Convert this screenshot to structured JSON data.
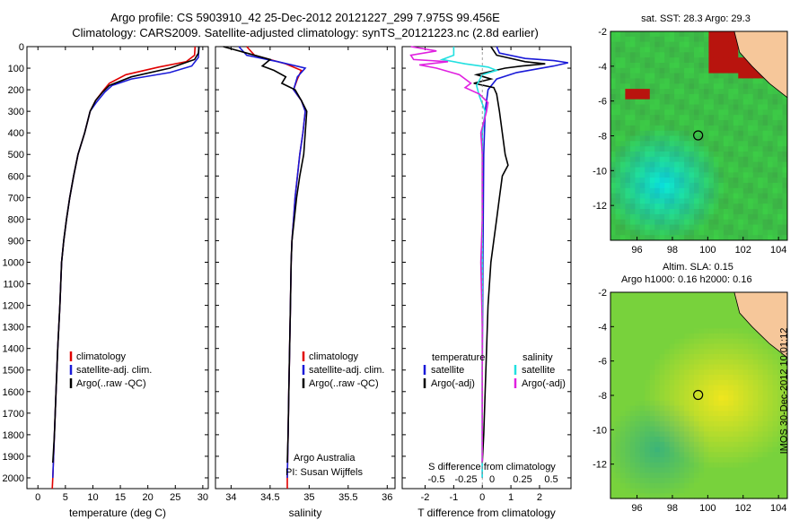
{
  "header": {
    "line1": "Argo profile: CS 5903910_42 25-Dec-2012 20121227_299 7.975S 99.456E",
    "line2": "Climatology: CARS2009. Satellite-adjusted climatology: synTS_20121223.nc (2.8d earlier)"
  },
  "colors": {
    "red": "#e00000",
    "blue": "#1a1ad8",
    "black": "#000000",
    "cyan": "#22e0e0",
    "magenta": "#e020e0",
    "land": "#f6c79a",
    "sea": "#46c246"
  },
  "chart_data": [
    {
      "type": "line",
      "name": "temperature",
      "xlabel": "temperature (deg C)",
      "xlim": [
        -2,
        31
      ],
      "ylim": [
        0,
        2050
      ],
      "xticks": [
        0,
        5,
        10,
        15,
        20,
        25,
        30
      ],
      "yticks": [
        0,
        100,
        200,
        300,
        400,
        500,
        600,
        700,
        800,
        900,
        1000,
        1100,
        1200,
        1300,
        1400,
        1500,
        1600,
        1700,
        1800,
        1900,
        2000
      ],
      "legend": [
        "climatology",
        "satellite-adj. clim.",
        "Argo(..raw -QC)"
      ],
      "series": [
        {
          "name": "climatology",
          "color": "red",
          "points": [
            [
              28.6,
              0
            ],
            [
              28.5,
              40
            ],
            [
              27,
              70
            ],
            [
              22,
              95
            ],
            [
              16,
              130
            ],
            [
              13,
              170
            ],
            [
              12,
              200
            ],
            [
              10.5,
              250
            ],
            [
              9.5,
              300
            ],
            [
              8.5,
              400
            ],
            [
              7.3,
              500
            ],
            [
              6.5,
              600
            ],
            [
              5.8,
              700
            ],
            [
              5.2,
              800
            ],
            [
              4.7,
              900
            ],
            [
              4.3,
              1000
            ],
            [
              4,
              1200
            ],
            [
              3.6,
              1400
            ],
            [
              3.3,
              1600
            ],
            [
              3,
              1800
            ],
            [
              2.7,
              2000
            ],
            [
              2.6,
              2050
            ]
          ]
        },
        {
          "name": "satellite-adj. clim.",
          "color": "blue",
          "points": [
            [
              29.3,
              0
            ],
            [
              29.2,
              50
            ],
            [
              28,
              90
            ],
            [
              24,
              120
            ],
            [
              17,
              150
            ],
            [
              13.5,
              180
            ],
            [
              12.2,
              210
            ],
            [
              10.6,
              260
            ],
            [
              9.5,
              300
            ],
            [
              8.5,
              400
            ],
            [
              7.3,
              500
            ],
            [
              6.5,
              600
            ],
            [
              5.8,
              700
            ],
            [
              5.2,
              800
            ],
            [
              4.7,
              900
            ],
            [
              4.3,
              1000
            ],
            [
              4,
              1200
            ],
            [
              3.6,
              1400
            ],
            [
              3.3,
              1600
            ],
            [
              3,
              1800
            ],
            [
              2.7,
              2000
            ]
          ]
        },
        {
          "name": "Argo(..raw -QC)",
          "color": "black",
          "points": [
            [
              29.3,
              0
            ],
            [
              29.2,
              30
            ],
            [
              28.5,
              60
            ],
            [
              24,
              100
            ],
            [
              17,
              140
            ],
            [
              13,
              180
            ],
            [
              11.8,
              210
            ],
            [
              10.5,
              250
            ],
            [
              9.5,
              300
            ],
            [
              8.5,
              400
            ],
            [
              7.3,
              500
            ],
            [
              6.5,
              600
            ],
            [
              5.8,
              700
            ],
            [
              5.2,
              800
            ],
            [
              4.7,
              900
            ],
            [
              4.3,
              1000
            ],
            [
              4,
              1200
            ],
            [
              3.6,
              1400
            ],
            [
              3.3,
              1600
            ],
            [
              3,
              1800
            ],
            [
              2.7,
              1930
            ]
          ]
        }
      ]
    },
    {
      "type": "line",
      "name": "salinity",
      "xlabel": "salinity",
      "xlim": [
        33.8,
        36.1
      ],
      "ylim": [
        0,
        2050
      ],
      "xticks": [
        34,
        34.5,
        35,
        35.5,
        36
      ],
      "legend": [
        "climatology",
        "satellite-adj. clim.",
        "Argo(..raw -QC)"
      ],
      "annotation": [
        "Argo Australia",
        "PI: Susan Wijffels"
      ],
      "series": [
        {
          "name": "climatology",
          "color": "red",
          "points": [
            [
              34.2,
              0
            ],
            [
              34.3,
              40
            ],
            [
              34.7,
              80
            ],
            [
              34.9,
              110
            ],
            [
              34.85,
              150
            ],
            [
              34.8,
              200
            ],
            [
              34.9,
              250
            ],
            [
              34.95,
              300
            ],
            [
              34.92,
              400
            ],
            [
              34.88,
              500
            ],
            [
              34.85,
              600
            ],
            [
              34.82,
              700
            ],
            [
              34.8,
              800
            ],
            [
              34.78,
              900
            ],
            [
              34.77,
              1000
            ],
            [
              34.76,
              1200
            ],
            [
              34.75,
              1400
            ],
            [
              34.74,
              1600
            ],
            [
              34.73,
              1800
            ],
            [
              34.72,
              2000
            ],
            [
              34.72,
              2050
            ]
          ]
        },
        {
          "name": "satellite-adj. clim.",
          "color": "blue",
          "points": [
            [
              34.1,
              0
            ],
            [
              34.2,
              40
            ],
            [
              34.6,
              70
            ],
            [
              34.95,
              100
            ],
            [
              34.85,
              140
            ],
            [
              34.8,
              200
            ],
            [
              34.9,
              250
            ],
            [
              34.95,
              300
            ],
            [
              34.92,
              400
            ],
            [
              34.88,
              500
            ],
            [
              34.85,
              600
            ],
            [
              34.82,
              700
            ],
            [
              34.8,
              800
            ],
            [
              34.78,
              900
            ],
            [
              34.77,
              1000
            ],
            [
              34.76,
              1200
            ],
            [
              34.75,
              1400
            ],
            [
              34.74,
              1600
            ],
            [
              34.73,
              1800
            ],
            [
              34.72,
              2000
            ]
          ]
        },
        {
          "name": "Argo(..raw -QC)",
          "color": "black",
          "points": [
            [
              33.9,
              0
            ],
            [
              34.2,
              30
            ],
            [
              34.5,
              60
            ],
            [
              34.4,
              90
            ],
            [
              34.55,
              110
            ],
            [
              34.7,
              140
            ],
            [
              34.65,
              170
            ],
            [
              34.82,
              200
            ],
            [
              34.9,
              250
            ],
            [
              34.97,
              300
            ],
            [
              34.95,
              400
            ],
            [
              34.93,
              500
            ],
            [
              34.88,
              600
            ],
            [
              34.84,
              700
            ],
            [
              34.81,
              800
            ],
            [
              34.78,
              900
            ],
            [
              34.77,
              1000
            ],
            [
              34.76,
              1200
            ],
            [
              34.75,
              1400
            ],
            [
              34.74,
              1600
            ],
            [
              34.73,
              1800
            ],
            [
              34.72,
              1930
            ]
          ]
        }
      ]
    },
    {
      "type": "line",
      "name": "differences",
      "xlabel": "T difference from climatology",
      "xlabel_top": "S difference from climatology",
      "xlim": [
        -2.8,
        3.1
      ],
      "ylim": [
        0,
        2050
      ],
      "xticks": [
        -2,
        -1,
        0,
        1,
        2
      ],
      "s_ticks": [
        -0.5,
        -0.25,
        0,
        0.25,
        0.5
      ],
      "legend_titles": [
        "temperature",
        "salinity"
      ],
      "legend": [
        "satellite",
        "Argo(-adj)",
        "satellite",
        "Argo(-adj)"
      ],
      "series": [
        {
          "name": "temperature satellite",
          "color": "blue",
          "points": [
            [
              0.5,
              0
            ],
            [
              0.6,
              30
            ],
            [
              1.5,
              55
            ],
            [
              2.5,
              65
            ],
            [
              3,
              75
            ],
            [
              2.5,
              90
            ],
            [
              1.2,
              120
            ],
            [
              0.5,
              150
            ],
            [
              0.2,
              200
            ],
            [
              0.1,
              300
            ],
            [
              0.05,
              500
            ],
            [
              0.02,
              1000
            ],
            [
              0,
              1500
            ],
            [
              0,
              2000
            ]
          ]
        },
        {
          "name": "temperature Argo(-adj)",
          "color": "black",
          "points": [
            [
              0.3,
              0
            ],
            [
              0.5,
              40
            ],
            [
              1.5,
              70
            ],
            [
              2.2,
              80
            ],
            [
              1.4,
              90
            ],
            [
              0.8,
              100
            ],
            [
              -0.2,
              130
            ],
            [
              0.3,
              150
            ],
            [
              -0.3,
              170
            ],
            [
              0.4,
              190
            ],
            [
              0.5,
              220
            ],
            [
              0.6,
              300
            ],
            [
              0.7,
              400
            ],
            [
              0.8,
              500
            ],
            [
              0.9,
              550
            ],
            [
              0.7,
              600
            ],
            [
              0.6,
              700
            ],
            [
              0.5,
              800
            ],
            [
              0.4,
              900
            ],
            [
              0.3,
              1000
            ],
            [
              0.2,
              1200
            ],
            [
              0.15,
              1400
            ],
            [
              0.1,
              1600
            ],
            [
              0.05,
              1800
            ],
            [
              0,
              1930
            ]
          ]
        },
        {
          "name": "salinity satellite",
          "color": "cyan",
          "points": [
            [
              -1,
              0
            ],
            [
              -1,
              40
            ],
            [
              -1.4,
              60
            ],
            [
              -0.6,
              80
            ],
            [
              0.2,
              95
            ],
            [
              0.5,
              110
            ],
            [
              0,
              130
            ],
            [
              -0.2,
              180
            ],
            [
              -0.1,
              230
            ],
            [
              0.1,
              300
            ],
            [
              0,
              400
            ],
            [
              0,
              600
            ],
            [
              0,
              1000
            ],
            [
              0,
              1500
            ],
            [
              0,
              2000
            ]
          ]
        },
        {
          "name": "salinity Argo(-adj)",
          "color": "magenta",
          "points": [
            [
              -2.5,
              0
            ],
            [
              -1.6,
              20
            ],
            [
              -2.5,
              40
            ],
            [
              -2.4,
              60
            ],
            [
              -1.2,
              70
            ],
            [
              -2.2,
              85
            ],
            [
              -1.6,
              100
            ],
            [
              -0.8,
              130
            ],
            [
              -0.4,
              170
            ],
            [
              -0.6,
              190
            ],
            [
              -0.1,
              220
            ],
            [
              0.2,
              260
            ],
            [
              0.15,
              300
            ],
            [
              -0.05,
              400
            ],
            [
              0,
              500
            ],
            [
              0,
              800
            ],
            [
              -0.05,
              1000
            ],
            [
              0,
              1300
            ],
            [
              0,
              1600
            ],
            [
              0,
              1800
            ],
            [
              0,
              1930
            ]
          ]
        }
      ]
    },
    {
      "type": "heatmap",
      "name": "sst-map",
      "title": "sat. SST: 28.3 Argo: 29.3",
      "xticks": [
        96,
        98,
        100,
        102,
        104
      ],
      "yticks": [
        -2,
        -4,
        -6,
        -8,
        -10,
        -12
      ],
      "xlim": [
        94.5,
        104.5
      ],
      "ylim": [
        -14,
        -2
      ],
      "marker": [
        99.456,
        -7.975
      ]
    },
    {
      "type": "heatmap",
      "name": "sla-map",
      "title_lines": [
        "Altim. SLA: 0.15",
        "Argo h1000: 0.16 h2000: 0.16"
      ],
      "xticks": [
        96,
        98,
        100,
        102,
        104
      ],
      "yticks": [
        -2,
        -4,
        -6,
        -8,
        -10,
        -12
      ],
      "xlim": [
        94.5,
        104.5
      ],
      "ylim": [
        -14,
        -2
      ],
      "marker": [
        99.456,
        -7.975
      ]
    }
  ],
  "footer": {
    "stamp": "IMOS 30-Dec-2012 10:01:12"
  }
}
